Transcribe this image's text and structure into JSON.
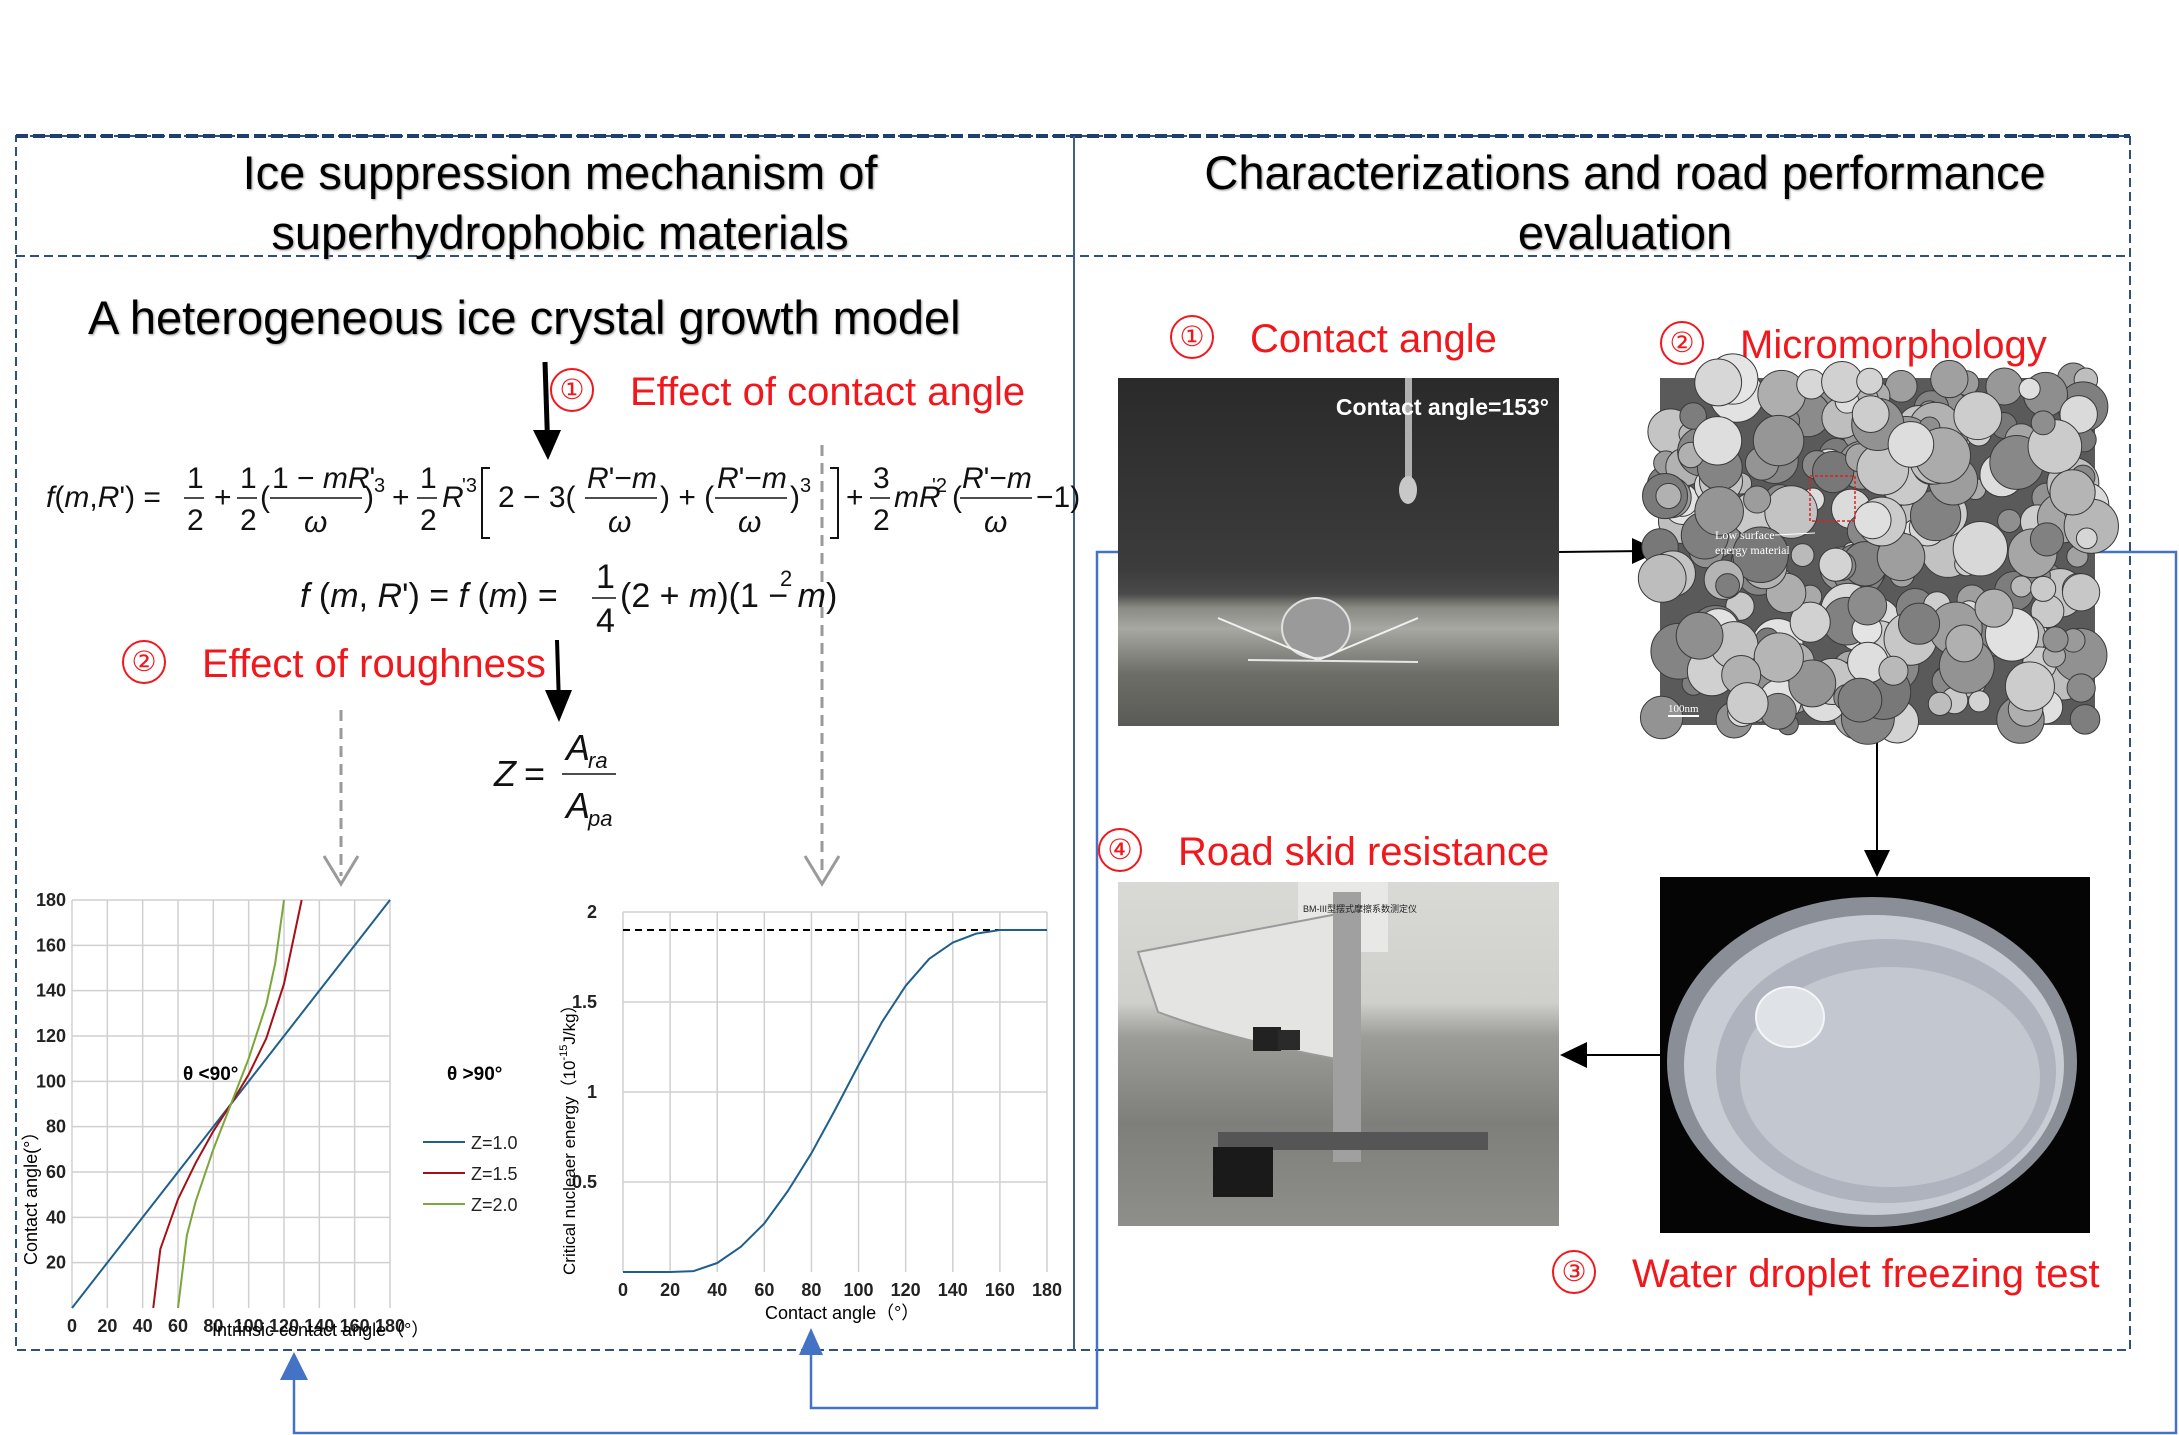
{
  "left_panel": {
    "title_line1": "Ice suppression mechanism of",
    "title_line2": "superhydrophobic materials",
    "model_title": "A heterogeneous ice crystal growth model",
    "step1": {
      "num": "①",
      "label": "Effect of contact angle"
    },
    "step2": {
      "num": "②",
      "label": "Effect of roughness"
    },
    "eq1": "f(m,R') = 1/2 + 1/2((1−mR')/ω)³ + 1/2 R'³[2 − 3((R'−m)/ω) + ((R'−m)/ω)³] + 3/2 mR'²((R'−m)/ω − 1)",
    "eq2": "f(m,R') = f(m) = 1/4 (2+m)(1−m)²",
    "eq3": "Z = A_ra / A_pa"
  },
  "right_panel": {
    "title_line1": "Characterizations and road performance",
    "title_line2": "evaluation",
    "step1": {
      "num": "①",
      "label": "Contact angle"
    },
    "step2": {
      "num": "②",
      "label": "Micromorphology"
    },
    "step3": {
      "num": "③",
      "label": "Water droplet freezing test"
    },
    "step4": {
      "num": "④",
      "label": "Road skid resistance"
    },
    "photo1_caption": "Contact angle=153°",
    "photo2_annotation_line1": "Low surface",
    "photo2_annotation_line2": "energy material",
    "photo2_scale": "100nm",
    "photo4_sign_text": "BM-III型摆式摩擦系数测定仪"
  },
  "colors": {
    "red": "#f0181c",
    "blue_line": "#4472c4",
    "series_blue": "#1f5f8b",
    "series_red": "#a50f15",
    "series_green": "#7aa63a"
  },
  "chart_data": [
    {
      "type": "line",
      "xlabel": "Intrinsic contact angle（°）",
      "ylabel": "Contact angle(°）",
      "xlim": [
        0,
        180
      ],
      "ylim": [
        0,
        180
      ],
      "xticks": [
        0,
        20,
        40,
        60,
        80,
        100,
        120,
        140,
        160,
        180
      ],
      "yticks": [
        20,
        40,
        60,
        80,
        100,
        120,
        140,
        160,
        180
      ],
      "grid": true,
      "legend_position": "bottom-right",
      "annotations": [
        "θ <90°",
        "θ >90°"
      ],
      "series": [
        {
          "name": "Z=1.0",
          "color": "#1f5f8b",
          "x": [
            0,
            30,
            60,
            90,
            120,
            150,
            180
          ],
          "y": [
            0,
            30,
            60,
            90,
            120,
            150,
            180
          ]
        },
        {
          "name": "Z=1.5",
          "color": "#a50f15",
          "x": [
            46,
            50,
            60,
            70,
            80,
            90,
            100,
            110,
            120,
            130
          ],
          "y": [
            0,
            26,
            48,
            64,
            78,
            90,
            103,
            119,
            143,
            180
          ]
        },
        {
          "name": "Z=2.0",
          "color": "#7aa63a",
          "x": [
            60,
            65,
            70,
            80,
            90,
            100,
            110,
            115,
            120
          ],
          "y": [
            0,
            32,
            47,
            70,
            90,
            110,
            134,
            152,
            180
          ]
        }
      ]
    },
    {
      "type": "line",
      "xlabel": "Contact angle（°）",
      "ylabel": "Critical nucleaer energy（10-15J/kg）",
      "ylabel_parts": {
        "pre": "Critical nucleaer energy（10",
        "sup": "-15",
        "post": "J/kg）"
      },
      "xlim": [
        0,
        180
      ],
      "ylim": [
        0,
        2
      ],
      "xticks": [
        0,
        20,
        40,
        60,
        80,
        100,
        120,
        140,
        160,
        180
      ],
      "yticks": [
        0.5,
        1,
        1.5,
        2
      ],
      "grid": true,
      "reference_line": 1.9,
      "series": [
        {
          "color": "#1f5f8b",
          "x": [
            0,
            20,
            30,
            40,
            50,
            60,
            70,
            80,
            90,
            100,
            110,
            120,
            130,
            140,
            150,
            160,
            170,
            180
          ],
          "y": [
            0,
            0,
            0.005,
            0.05,
            0.14,
            0.27,
            0.45,
            0.66,
            0.9,
            1.15,
            1.39,
            1.59,
            1.74,
            1.83,
            1.88,
            1.9,
            1.9,
            1.9
          ]
        }
      ]
    }
  ]
}
